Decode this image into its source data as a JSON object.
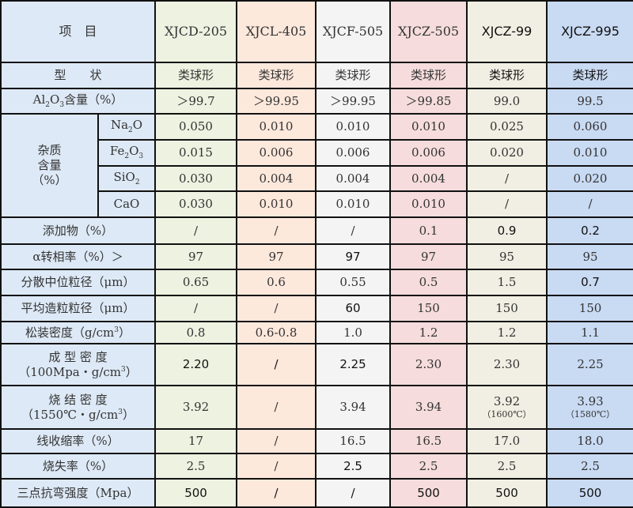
{
  "header": {
    "label": "项　目",
    "products": [
      "XJCD-205",
      "XJCL-405",
      "XJCF-505",
      "XJCZ-505",
      "XJCZ-99",
      "XJCZ-995"
    ]
  },
  "colors": {
    "label_bg": "#dde9f6",
    "columns": [
      "#edf2e1",
      "#fde8dc",
      "#f4f4f4",
      "#f6dcdc",
      "#f1efe3",
      "#c9daf3"
    ]
  },
  "rows": [
    {
      "label": [
        [
          "型　　状"
        ]
      ],
      "cells": [
        "类球形",
        "类球形",
        "类球形",
        "类球形",
        "类球形",
        "类球形"
      ]
    },
    {
      "label": [
        [
          "Al"
        ],
        [
          "2",
          "sub"
        ],
        [
          "O"
        ],
        [
          "3",
          "sub"
        ],
        [
          "含量（%）"
        ]
      ],
      "cells": [
        "＞99.7",
        "＞99.95",
        "＞99.95",
        "＞99.85",
        "99.0",
        "99.5"
      ]
    },
    {
      "group": "杂质\n含量\n（%）",
      "label": [
        [
          "Na"
        ],
        [
          "2",
          "sub"
        ],
        [
          "O"
        ]
      ],
      "cells": [
        "0.050",
        "0.010",
        "0.010",
        "0.010",
        "0.025",
        "0.060"
      ]
    },
    {
      "label": [
        [
          "Fe"
        ],
        [
          "2",
          "sub"
        ],
        [
          "O"
        ],
        [
          "3",
          "sub"
        ]
      ],
      "cells": [
        "0.015",
        "0.006",
        "0.006",
        "0.006",
        "0.020",
        "0.010"
      ]
    },
    {
      "label": [
        [
          "SiO"
        ],
        [
          "2",
          "sub"
        ]
      ],
      "cells": [
        "0.030",
        "0.004",
        "0.004",
        "0.004",
        "/",
        "0.020"
      ]
    },
    {
      "label": [
        [
          "CaO"
        ]
      ],
      "cells": [
        "0.030",
        "0.010",
        "0.010",
        "0.010",
        "/",
        "/"
      ]
    },
    {
      "label": [
        [
          "添加物（%）"
        ]
      ],
      "cells": [
        "/",
        "/",
        "/",
        "0.1",
        "0.9",
        "0.2"
      ]
    },
    {
      "label": [
        [
          "α转相率（%）＞"
        ]
      ],
      "cells": [
        "97",
        "97",
        "97",
        "97",
        "95",
        "95"
      ]
    },
    {
      "label": [
        [
          "分散中位粒径（μm）"
        ]
      ],
      "cells": [
        "0.65",
        "0.6",
        "0.55",
        "0.5",
        "1.5",
        "0.7"
      ]
    },
    {
      "label": [
        [
          "平均造粒粒径（μm）"
        ]
      ],
      "cells": [
        "/",
        "/",
        "60",
        "150",
        "150",
        "150"
      ]
    },
    {
      "label": [
        [
          "松装密度（g/cm"
        ],
        [
          "3",
          "sup"
        ],
        [
          "）"
        ]
      ],
      "cells": [
        "0.8",
        "0.6-0.8",
        "1.0",
        "1.2",
        "1.2",
        "1.1"
      ]
    },
    {
      "label": [
        [
          "成 型 密 度"
        ],
        [
          "\n"
        ],
        [
          "（100Mpa・g/cm"
        ],
        [
          "3",
          "sup"
        ],
        [
          "）"
        ]
      ],
      "cells": [
        "2.20",
        "/",
        "2.25",
        "2.30",
        "2.30",
        "2.25"
      ]
    },
    {
      "label": [
        [
          "烧 结 密 度"
        ],
        [
          "\n"
        ],
        [
          "（1550℃・g/cm"
        ],
        [
          "3",
          "sup"
        ],
        [
          "）"
        ]
      ],
      "cells": [
        "3.92",
        "/",
        "3.94",
        "3.94",
        "3.92",
        "3.93"
      ],
      "notes": [
        "",
        "",
        "",
        "",
        "（1600℃）",
        "（1580℃）"
      ]
    },
    {
      "label": [
        [
          "线收缩率（%）"
        ]
      ],
      "cells": [
        "17",
        "/",
        "16.5",
        "16.5",
        "17.0",
        "18.0"
      ]
    },
    {
      "label": [
        [
          "烧失率（%）"
        ]
      ],
      "cells": [
        "2.5",
        "/",
        "2.5",
        "2.5",
        "2.5",
        "2.5"
      ]
    },
    {
      "label": [
        [
          "三点抗弯强度（Mpa）"
        ]
      ],
      "cells": [
        "500",
        "/",
        "/",
        "500",
        "500",
        "500"
      ]
    }
  ]
}
